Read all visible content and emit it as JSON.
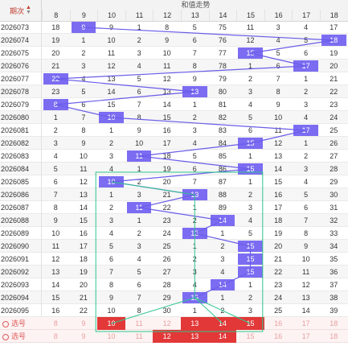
{
  "header": {
    "title": "和值走势",
    "period_label": "期次"
  },
  "columns": [
    8,
    9,
    10,
    11,
    12,
    13,
    14,
    15,
    16,
    17,
    18
  ],
  "rows": [
    {
      "period": "2026073",
      "cells": [
        "18",
        "9",
        "9",
        "1",
        "8",
        "5",
        "75",
        "11",
        "3",
        "4",
        "17"
      ],
      "hit": 9
    },
    {
      "period": "2026074",
      "cells": [
        "19",
        "1",
        "10",
        "2",
        "9",
        "6",
        "76",
        "12",
        "4",
        "5",
        "18"
      ],
      "hit": 18
    },
    {
      "period": "2026075",
      "cells": [
        "20",
        "2",
        "11",
        "3",
        "10",
        "7",
        "77",
        "15",
        "5",
        "6",
        "19"
      ],
      "hit": 15
    },
    {
      "period": "2026076",
      "cells": [
        "21",
        "3",
        "12",
        "4",
        "11",
        "8",
        "78",
        "1",
        "6",
        "17",
        "20"
      ],
      "hit": 17
    },
    {
      "period": "2026077",
      "cells": [
        "22",
        "4",
        "13",
        "5",
        "12",
        "9",
        "79",
        "2",
        "7",
        "1",
        "21"
      ],
      "hit": 8
    },
    {
      "period": "2026078",
      "cells": [
        "23",
        "5",
        "14",
        "6",
        "13",
        "13",
        "80",
        "3",
        "8",
        "2",
        "22"
      ],
      "hit": 13
    },
    {
      "period": "2026079",
      "cells": [
        "8",
        "6",
        "15",
        "7",
        "14",
        "1",
        "81",
        "4",
        "9",
        "3",
        "23"
      ],
      "hit": 8
    },
    {
      "period": "2026080",
      "cells": [
        "1",
        "7",
        "10",
        "8",
        "15",
        "2",
        "82",
        "5",
        "10",
        "4",
        "24"
      ],
      "hit": 10
    },
    {
      "period": "2026081",
      "cells": [
        "2",
        "8",
        "1",
        "9",
        "16",
        "3",
        "83",
        "6",
        "11",
        "17",
        "25"
      ],
      "hit": 17
    },
    {
      "period": "2026082",
      "cells": [
        "3",
        "9",
        "2",
        "10",
        "17",
        "4",
        "84",
        "15",
        "12",
        "1",
        "26"
      ],
      "hit": 15
    },
    {
      "period": "2026083",
      "cells": [
        "4",
        "10",
        "3",
        "11",
        "18",
        "5",
        "85",
        "1",
        "13",
        "2",
        "27"
      ],
      "hit": 11
    },
    {
      "period": "2026084",
      "cells": [
        "5",
        "11",
        "4",
        "1",
        "19",
        "6",
        "86",
        "15",
        "14",
        "3",
        "28"
      ],
      "hit": 15
    },
    {
      "period": "2026085",
      "cells": [
        "6",
        "12",
        "10",
        "2",
        "20",
        "7",
        "87",
        "1",
        "15",
        "4",
        "29"
      ],
      "hit": 10
    },
    {
      "period": "2026086",
      "cells": [
        "7",
        "13",
        "1",
        "3",
        "21",
        "13",
        "88",
        "2",
        "16",
        "5",
        "30"
      ],
      "hit": 13
    },
    {
      "period": "2026087",
      "cells": [
        "8",
        "14",
        "2",
        "11",
        "22",
        "1",
        "89",
        "3",
        "17",
        "6",
        "31"
      ],
      "hit": 11
    },
    {
      "period": "2026088",
      "cells": [
        "9",
        "15",
        "3",
        "1",
        "23",
        "2",
        "14",
        "4",
        "18",
        "7",
        "32"
      ],
      "hit": 14
    },
    {
      "period": "2026089",
      "cells": [
        "10",
        "16",
        "4",
        "2",
        "24",
        "13",
        "1",
        "5",
        "19",
        "8",
        "33"
      ],
      "hit": 13
    },
    {
      "period": "2026090",
      "cells": [
        "11",
        "17",
        "5",
        "3",
        "25",
        "1",
        "2",
        "15",
        "20",
        "9",
        "34"
      ],
      "hit": 15
    },
    {
      "period": "2026091",
      "cells": [
        "12",
        "18",
        "6",
        "4",
        "26",
        "2",
        "3",
        "15",
        "21",
        "10",
        "35"
      ],
      "hit": 15
    },
    {
      "period": "2026092",
      "cells": [
        "13",
        "19",
        "7",
        "5",
        "27",
        "3",
        "4",
        "15",
        "22",
        "11",
        "36"
      ],
      "hit": 15
    },
    {
      "period": "2026093",
      "cells": [
        "14",
        "20",
        "8",
        "6",
        "28",
        "4",
        "14",
        "1",
        "23",
        "12",
        "37"
      ],
      "hit": 14
    },
    {
      "period": "2026094",
      "cells": [
        "15",
        "21",
        "9",
        "7",
        "29",
        "13",
        "1",
        "2",
        "24",
        "13",
        "38"
      ],
      "hit": 13
    },
    {
      "period": "2026095",
      "cells": [
        "16",
        "22",
        "10",
        "8",
        "30",
        "1",
        "2",
        "3",
        "25",
        "14",
        "39"
      ],
      "hit": null
    }
  ],
  "pick_rows": [
    {
      "label": "选号",
      "cells": [
        "8",
        "9",
        "10",
        "11",
        "12",
        "13",
        "14",
        "15",
        "16",
        "17",
        "18"
      ],
      "selected": [
        10,
        13,
        14,
        15
      ]
    },
    {
      "label": "选号",
      "cells": [
        "8",
        "9",
        "10",
        "11",
        "12",
        "13",
        "14",
        "15",
        "16",
        "17",
        "18"
      ],
      "selected": [
        12,
        13,
        14
      ]
    }
  ],
  "colors": {
    "hit": "#7b6cf2",
    "trend_line": "#6a5de8",
    "pattern": "#2fc48d",
    "pick_selected": "#e23838",
    "pick_text": "#e05a5a"
  }
}
